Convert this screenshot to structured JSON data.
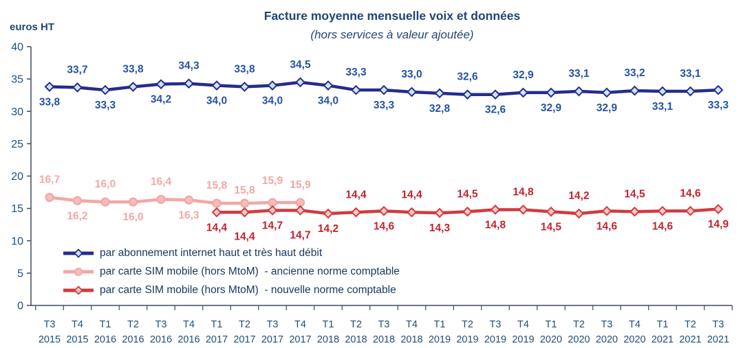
{
  "chart_data": {
    "type": "line",
    "title": "Facture moyenne mensuelle voix et données",
    "subtitle": "(hors services à valeur ajoutée)",
    "y_axis_unit": "euros HT",
    "ylim": [
      0,
      40
    ],
    "ytick_step": 5,
    "yticks": [
      0,
      5,
      10,
      15,
      20,
      25,
      30,
      35,
      40
    ],
    "grid": false,
    "legend_position": "inside-bottom-left",
    "axis_color": "#3F4A5A",
    "tick_label_color": "#1F4E79",
    "decimal_separator": ",",
    "categories_quarter": [
      "T3",
      "T4",
      "T1",
      "T2",
      "T3",
      "T4",
      "T1",
      "T2",
      "T3",
      "T4",
      "T1",
      "T2",
      "T3",
      "T4",
      "T1",
      "T2",
      "T3",
      "T4",
      "T1",
      "T2",
      "T3",
      "T4",
      "T1",
      "T2",
      "T3"
    ],
    "categories_year": [
      "2015",
      "2015",
      "2016",
      "2016",
      "2016",
      "2016",
      "2017",
      "2017",
      "2017",
      "2017",
      "2018",
      "2018",
      "2018",
      "2018",
      "2019",
      "2019",
      "2019",
      "2019",
      "2020",
      "2020",
      "2020",
      "2020",
      "2021",
      "2021",
      "2021"
    ],
    "series": [
      {
        "id": "internet",
        "name": "par abonnement internet haut et très haut débit",
        "color": "#232D8C",
        "marker": "diamond",
        "marker_fill": "#CDE5F5",
        "label_color": "#2553A2",
        "start_index": 0,
        "values": [
          33.8,
          33.7,
          33.3,
          33.8,
          34.2,
          34.3,
          34.0,
          33.8,
          34.0,
          34.5,
          34.0,
          33.3,
          33.3,
          33.0,
          32.8,
          32.6,
          32.6,
          32.9,
          32.9,
          33.1,
          32.9,
          33.2,
          33.1,
          33.1,
          33.3
        ],
        "label_side": [
          "below",
          "above",
          "below",
          "above",
          "below",
          "above",
          "below",
          "above",
          "below",
          "above",
          "below",
          "above",
          "below",
          "above",
          "below",
          "above",
          "below",
          "above",
          "below",
          "above",
          "below",
          "above",
          "below",
          "above",
          "below"
        ],
        "label_dy": [
          0,
          0,
          0,
          0,
          0,
          0,
          0,
          0,
          0,
          0,
          0,
          0,
          0,
          0,
          0,
          0,
          0,
          0,
          0,
          0,
          0,
          0,
          0,
          0,
          0
        ]
      },
      {
        "id": "sim-ancienne",
        "name": "par carte SIM mobile (hors MtoM)  - ancienne norme comptable",
        "color": "#F2A7A5",
        "marker": "circle",
        "marker_fill": "#F6BDBB",
        "label_color": "#F2A7A5",
        "start_index": 0,
        "values": [
          16.7,
          16.2,
          16.0,
          16.0,
          16.4,
          16.3,
          15.8,
          15.8,
          15.9,
          15.9
        ],
        "label_side": [
          "above",
          "below",
          "above",
          "below",
          "above",
          "below",
          "above",
          "above",
          "above",
          "above"
        ],
        "label_dy": [
          0,
          0,
          0,
          0,
          0,
          0,
          0,
          7,
          -6,
          0
        ]
      },
      {
        "id": "sim-nouvelle",
        "name": "par carte SIM mobile (hors MtoM)  - nouvelle norme comptable",
        "color": "#D23A3E",
        "marker": "diamond",
        "marker_fill": "#F6C6C5",
        "label_color": "#C3232D",
        "start_index": 6,
        "values": [
          14.4,
          14.4,
          14.7,
          14.7,
          14.2,
          14.4,
          14.6,
          14.4,
          14.3,
          14.5,
          14.8,
          14.8,
          14.5,
          14.2,
          14.6,
          14.5,
          14.6,
          14.6,
          14.9
        ],
        "label_side": [
          "below",
          "below",
          "below",
          "below",
          "below",
          "above",
          "below",
          "above",
          "below",
          "above",
          "below",
          "above",
          "below",
          "above",
          "below",
          "above",
          "below",
          "above",
          "below"
        ],
        "label_dy": [
          0,
          13,
          0,
          14,
          0,
          0,
          0,
          0,
          0,
          0,
          0,
          0,
          0,
          0,
          0,
          0,
          0,
          0,
          0
        ]
      }
    ]
  }
}
